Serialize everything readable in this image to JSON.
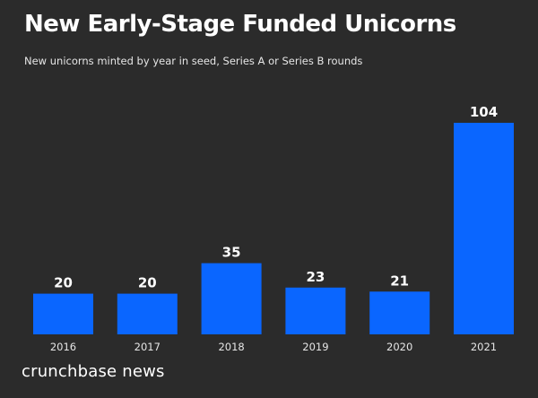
{
  "chart_data": {
    "type": "bar",
    "title": "New Early-Stage Funded Unicorns",
    "subtitle": "New unicorns minted by year in seed, Series A or Series B rounds",
    "categories": [
      "2016",
      "2017",
      "2018",
      "2019",
      "2020",
      "2021"
    ],
    "values": [
      20,
      20,
      35,
      23,
      21,
      104
    ],
    "xlabel": "",
    "ylabel": "",
    "ylim": [
      0,
      104
    ],
    "grid": false,
    "legend": "none",
    "data_labels": true,
    "bar_color": "#0a66ff"
  },
  "footer": {
    "brand": "crunchbase news"
  },
  "colors": {
    "background": "#2b2b2b",
    "text": "#ffffff"
  }
}
